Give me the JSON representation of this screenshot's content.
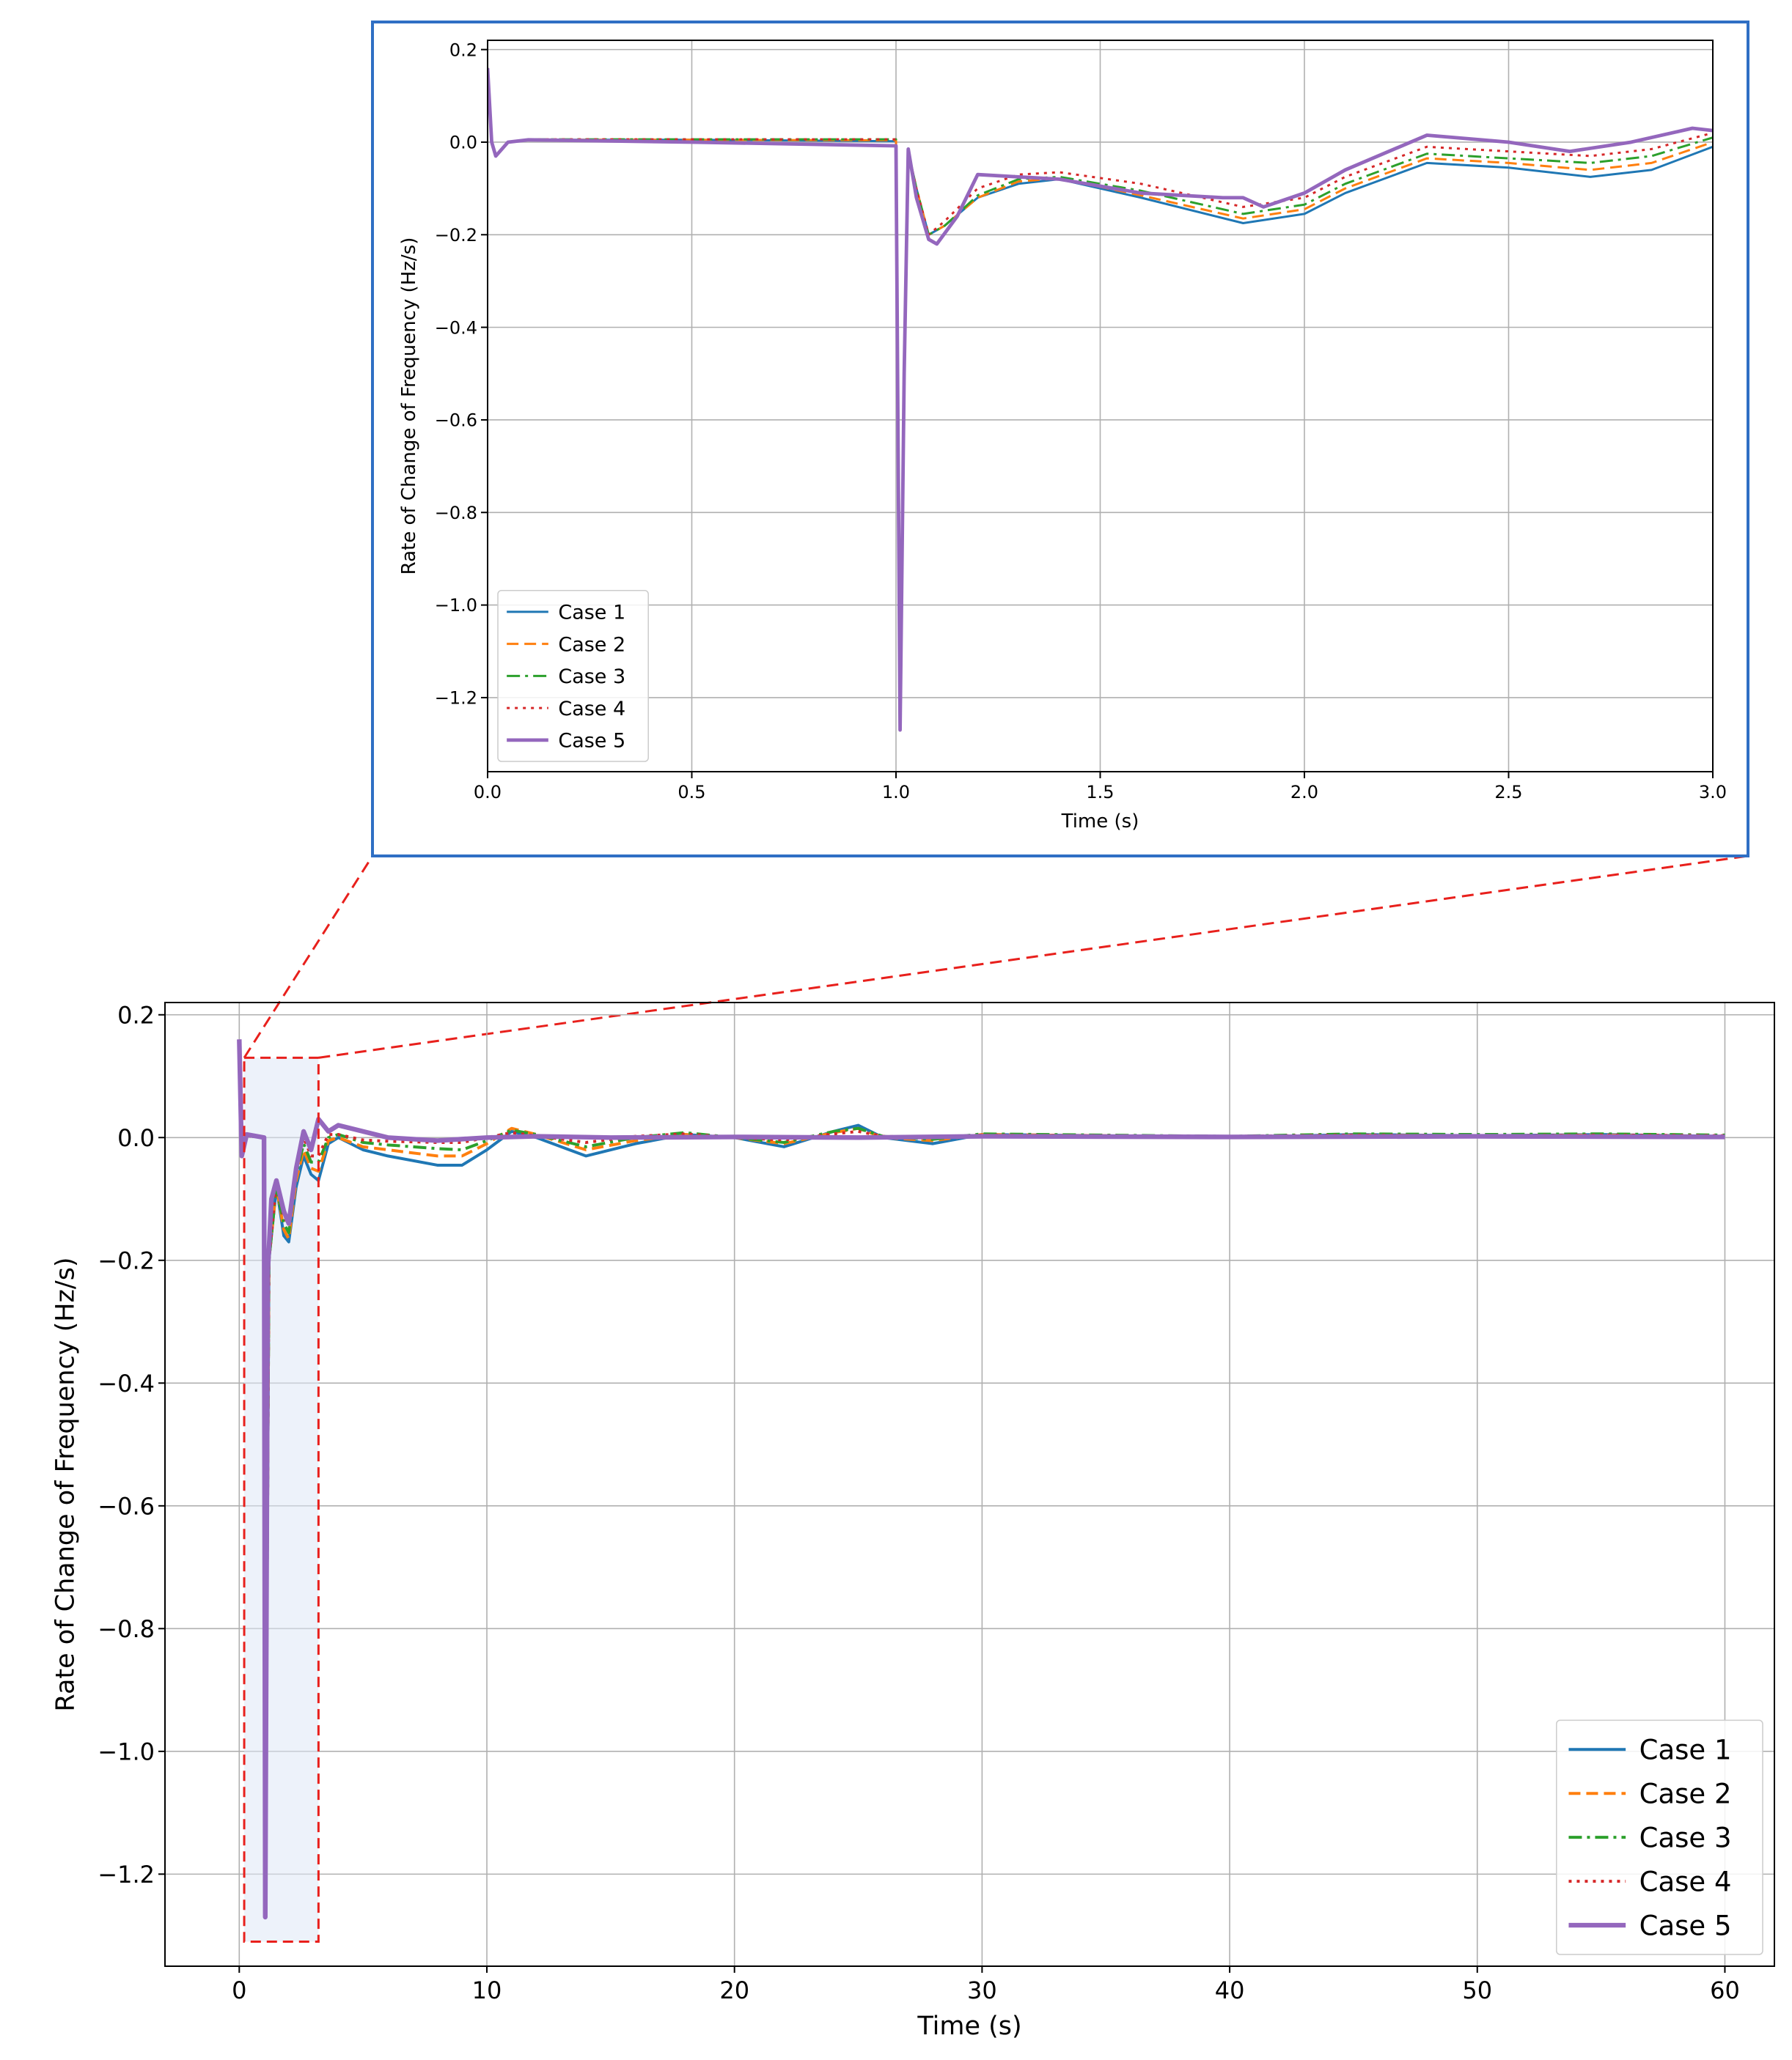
{
  "chart_data": [
    {
      "id": "inset",
      "type": "line",
      "xlabel": "Time (s)",
      "ylabel": "Rate of Change of Frequency (Hz/s)",
      "xlim": [
        0,
        3
      ],
      "ylim": [
        -1.36,
        0.22
      ],
      "xticks": [
        0,
        0.5,
        1,
        1.5,
        2,
        2.5,
        3
      ],
      "xtick_labels": [
        "0.0",
        "0.5",
        "1.0",
        "1.5",
        "2.0",
        "2.5",
        "3.0"
      ],
      "yticks": [
        0.2,
        0,
        -0.2,
        -0.4,
        -0.6,
        -0.8,
        -1,
        -1.2
      ],
      "ytick_labels": [
        "0.2",
        "0.0",
        "−0.2",
        "−0.4",
        "−0.6",
        "−0.8",
        "−1.0",
        "−1.2"
      ],
      "grid": true,
      "legend_position": "lower-left",
      "series": [
        {
          "name": "Case 1",
          "color": "#1f77b4",
          "style": "solid",
          "x": [
            0,
            0.01,
            0.02,
            0.05,
            0.1,
            0.5,
            1.0,
            1.01,
            1.02,
            1.03,
            1.05,
            1.08,
            1.12,
            1.2,
            1.3,
            1.4,
            1.6,
            1.85,
            2.0,
            2.1,
            2.3,
            2.5,
            2.7,
            2.85,
            3.0
          ],
          "y": [
            0.16,
            0.0,
            -0.03,
            0.0,
            0.005,
            0.005,
            0.002,
            -1.27,
            -0.5,
            -0.02,
            -0.1,
            -0.2,
            -0.18,
            -0.12,
            -0.09,
            -0.08,
            -0.12,
            -0.175,
            -0.155,
            -0.11,
            -0.045,
            -0.055,
            -0.075,
            -0.06,
            -0.01
          ]
        },
        {
          "name": "Case 2",
          "color": "#ff7f0e",
          "style": "dashed",
          "x": [
            0,
            0.01,
            0.02,
            0.05,
            0.1,
            0.5,
            1.0,
            1.01,
            1.02,
            1.03,
            1.05,
            1.08,
            1.12,
            1.2,
            1.3,
            1.4,
            1.6,
            1.85,
            2.0,
            2.1,
            2.3,
            2.5,
            2.7,
            2.85,
            3.0
          ],
          "y": [
            0.16,
            0.0,
            -0.03,
            0.0,
            0.005,
            0.005,
            0.004,
            -1.27,
            -0.5,
            -0.02,
            -0.1,
            -0.2,
            -0.18,
            -0.12,
            -0.085,
            -0.078,
            -0.115,
            -0.165,
            -0.145,
            -0.1,
            -0.035,
            -0.045,
            -0.06,
            -0.045,
            0.0
          ]
        },
        {
          "name": "Case 3",
          "color": "#2ca02c",
          "style": "dashdot",
          "x": [
            0,
            0.01,
            0.02,
            0.05,
            0.1,
            0.5,
            1.0,
            1.01,
            1.02,
            1.03,
            1.05,
            1.08,
            1.12,
            1.2,
            1.3,
            1.4,
            1.6,
            1.85,
            2.0,
            2.1,
            2.3,
            2.5,
            2.7,
            2.85,
            3.0
          ],
          "y": [
            0.16,
            0.0,
            -0.03,
            0.0,
            0.006,
            0.006,
            0.006,
            -1.27,
            -0.5,
            -0.02,
            -0.1,
            -0.2,
            -0.18,
            -0.115,
            -0.08,
            -0.075,
            -0.105,
            -0.155,
            -0.135,
            -0.09,
            -0.025,
            -0.035,
            -0.045,
            -0.03,
            0.01
          ]
        },
        {
          "name": "Case 4",
          "color": "#d62728",
          "style": "dotted",
          "x": [
            0,
            0.01,
            0.02,
            0.05,
            0.1,
            0.5,
            1.0,
            1.01,
            1.02,
            1.03,
            1.05,
            1.08,
            1.12,
            1.2,
            1.3,
            1.4,
            1.6,
            1.85,
            2.0,
            2.1,
            2.3,
            2.5,
            2.7,
            2.85,
            3.0
          ],
          "y": [
            0.16,
            0.0,
            -0.03,
            0.0,
            0.006,
            0.006,
            0.006,
            -1.27,
            -0.5,
            -0.02,
            -0.1,
            -0.2,
            -0.17,
            -0.1,
            -0.07,
            -0.065,
            -0.09,
            -0.14,
            -0.12,
            -0.075,
            -0.01,
            -0.02,
            -0.03,
            -0.015,
            0.02
          ]
        },
        {
          "name": "Case 5",
          "color": "#9467bd",
          "style": "solid-thick",
          "x": [
            0,
            0.01,
            0.02,
            0.05,
            0.1,
            0.5,
            1.0,
            1.01,
            1.02,
            1.03,
            1.05,
            1.08,
            1.1,
            1.15,
            1.2,
            1.3,
            1.4,
            1.6,
            1.8,
            1.85,
            1.9,
            2.0,
            2.1,
            2.3,
            2.5,
            2.65,
            2.8,
            2.95,
            3.0
          ],
          "y": [
            0.16,
            0.0,
            -0.03,
            0.0,
            0.005,
            0.0,
            -0.008,
            -1.27,
            -0.5,
            -0.015,
            -0.12,
            -0.21,
            -0.22,
            -0.16,
            -0.07,
            -0.075,
            -0.08,
            -0.11,
            -0.12,
            -0.12,
            -0.14,
            -0.11,
            -0.06,
            0.015,
            0.0,
            -0.02,
            0.0,
            0.03,
            0.025
          ]
        }
      ]
    },
    {
      "id": "main",
      "type": "line",
      "xlabel": "Time (s)",
      "ylabel": "Rate of Change of Frequency (Hz/s)",
      "xlim": [
        -3,
        62
      ],
      "ylim": [
        -1.35,
        0.22
      ],
      "xticks": [
        0,
        10,
        20,
        30,
        40,
        50,
        60
      ],
      "xtick_labels": [
        "0",
        "10",
        "20",
        "30",
        "40",
        "50",
        "60"
      ],
      "yticks": [
        0.2,
        0,
        -0.2,
        -0.4,
        -0.6,
        -0.8,
        -1,
        -1.2
      ],
      "ytick_labels": [
        "0.2",
        "0.0",
        "−0.2",
        "−0.4",
        "−0.6",
        "−0.8",
        "−1.0",
        "−1.2"
      ],
      "grid": true,
      "legend_position": "lower-right",
      "zoom_region": {
        "x": [
          0.2,
          3.2
        ],
        "y": [
          -1.31,
          0.13
        ]
      },
      "series": [
        {
          "name": "Case 1",
          "color": "#1f77b4",
          "style": "solid",
          "x": [
            0,
            0.1,
            0.3,
            1.0,
            1.05,
            1.2,
            1.5,
            1.8,
            2.0,
            2.3,
            2.6,
            2.9,
            3.2,
            3.6,
            4,
            5,
            6,
            8,
            9,
            10,
            11,
            12,
            14,
            16,
            18,
            20,
            22,
            24,
            25,
            26,
            28,
            30,
            35,
            40,
            45,
            50,
            55,
            60
          ],
          "y": [
            0.15,
            -0.02,
            0.003,
            0.0,
            -1.27,
            -0.2,
            -0.08,
            -0.16,
            -0.17,
            -0.08,
            -0.03,
            -0.06,
            -0.07,
            -0.01,
            0.0,
            -0.02,
            -0.03,
            -0.045,
            -0.045,
            -0.02,
            0.01,
            0.0,
            -0.03,
            -0.01,
            0.005,
            0.0,
            -0.015,
            0.01,
            0.02,
            0.0,
            -0.01,
            0.005,
            0.003,
            0.0,
            0.005,
            0.003,
            0.005,
            0.002
          ]
        },
        {
          "name": "Case 2",
          "color": "#ff7f0e",
          "style": "dashed",
          "x": [
            0,
            0.1,
            0.3,
            1.0,
            1.05,
            1.2,
            1.5,
            1.8,
            2.0,
            2.3,
            2.6,
            2.9,
            3.2,
            3.6,
            4,
            5,
            6,
            8,
            9,
            10,
            11,
            12,
            14,
            16,
            18,
            20,
            22,
            24,
            25,
            26,
            28,
            30,
            35,
            40,
            45,
            50,
            55,
            60
          ],
          "y": [
            0.15,
            -0.02,
            0.003,
            0.0,
            -1.27,
            -0.2,
            -0.08,
            -0.15,
            -0.165,
            -0.07,
            -0.02,
            -0.05,
            -0.055,
            -0.005,
            0.0,
            -0.015,
            -0.02,
            -0.03,
            -0.03,
            -0.01,
            0.015,
            0.005,
            -0.02,
            -0.005,
            0.005,
            0.0,
            -0.01,
            0.008,
            0.015,
            0.0,
            -0.005,
            0.005,
            0.003,
            0.0,
            0.004,
            0.003,
            0.004,
            0.002
          ]
        },
        {
          "name": "Case 3",
          "color": "#2ca02c",
          "style": "dashdot",
          "x": [
            0,
            0.1,
            0.3,
            1.0,
            1.05,
            1.2,
            1.5,
            1.8,
            2.0,
            2.3,
            2.6,
            2.9,
            3.2,
            3.6,
            4,
            5,
            6,
            8,
            9,
            10,
            11,
            12,
            14,
            16,
            18,
            20,
            22,
            24,
            25,
            26,
            28,
            30,
            35,
            40,
            45,
            50,
            55,
            60
          ],
          "y": [
            0.15,
            -0.02,
            0.003,
            0.0,
            -1.27,
            -0.2,
            -0.08,
            -0.14,
            -0.155,
            -0.06,
            -0.01,
            -0.04,
            -0.04,
            0.0,
            0.005,
            -0.008,
            -0.012,
            -0.018,
            -0.02,
            -0.005,
            0.012,
            0.005,
            -0.015,
            0.0,
            0.008,
            0.0,
            -0.008,
            0.01,
            0.015,
            0.002,
            -0.003,
            0.006,
            0.004,
            0.002,
            0.006,
            0.005,
            0.006,
            0.004
          ]
        },
        {
          "name": "Case 4",
          "color": "#d62728",
          "style": "dotted",
          "x": [
            0,
            0.1,
            0.3,
            1.0,
            1.05,
            1.2,
            1.5,
            1.8,
            2.0,
            2.3,
            2.6,
            2.9,
            3.2,
            3.6,
            4,
            5,
            6,
            8,
            9,
            10,
            11,
            12,
            14,
            16,
            18,
            20,
            22,
            24,
            25,
            26,
            28,
            30,
            35,
            40,
            45,
            50,
            55,
            60
          ],
          "y": [
            0.15,
            -0.02,
            0.003,
            0.0,
            -1.27,
            -0.2,
            -0.07,
            -0.13,
            -0.14,
            -0.05,
            0.0,
            -0.03,
            -0.03,
            0.005,
            0.005,
            -0.004,
            -0.006,
            -0.008,
            -0.008,
            0.0,
            0.008,
            0.003,
            -0.008,
            0.002,
            0.006,
            0.0,
            -0.004,
            0.006,
            0.01,
            0.002,
            0.0,
            0.004,
            0.003,
            0.002,
            0.004,
            0.003,
            0.004,
            0.003
          ]
        },
        {
          "name": "Case 5",
          "color": "#9467bd",
          "style": "solid-thick",
          "x": [
            0,
            0.1,
            0.3,
            1.0,
            1.05,
            1.15,
            1.3,
            1.5,
            1.8,
            2.0,
            2.3,
            2.6,
            2.9,
            3.2,
            3.6,
            4,
            5,
            6,
            8,
            10,
            12,
            15,
            20,
            25,
            30,
            40,
            50,
            60
          ],
          "y": [
            0.16,
            -0.03,
            0.005,
            0.0,
            -1.27,
            -0.22,
            -0.1,
            -0.07,
            -0.12,
            -0.14,
            -0.05,
            0.01,
            -0.02,
            0.03,
            0.01,
            0.02,
            0.01,
            0.0,
            -0.005,
            0.0,
            0.002,
            0.0,
            0.001,
            0.0,
            0.002,
            0.001,
            0.002,
            0.001
          ]
        }
      ]
    }
  ]
}
